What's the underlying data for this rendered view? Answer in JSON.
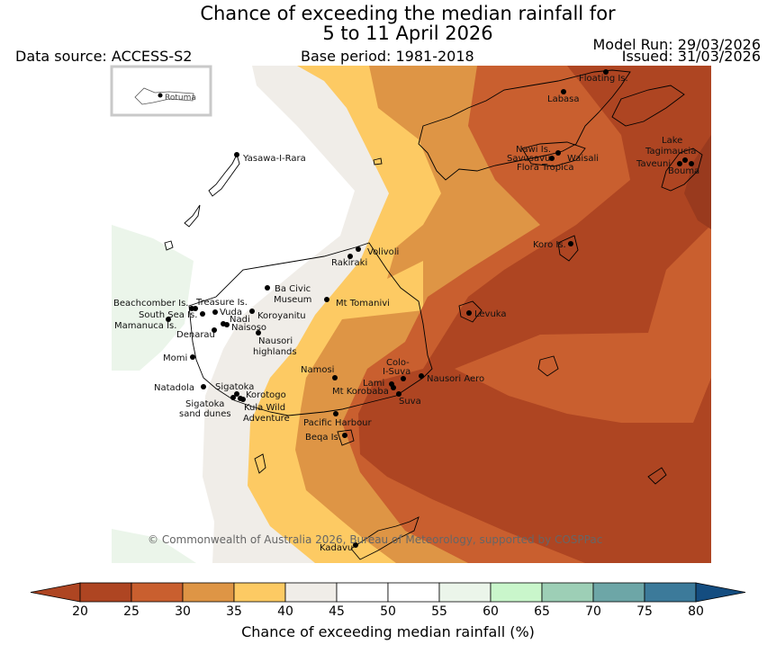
{
  "title_line1": "Chance of exceeding the median rainfall for",
  "title_line2": "5 to 11 April 2026",
  "data_source": "Data source: ACCESS-S2",
  "base_period": "Base period: 1981-2018",
  "model_run": "Model Run: 29/03/2026",
  "issued": "Issued: 31/03/2026",
  "inset_label": "Rotuma",
  "copyright": "© Commonwealth of Australia 2026, Bureau of Meteorology, supported by COSPPac",
  "places": [
    "Floating Is.",
    "Labasa",
    "Nawi Is.",
    "Savusavu",
    "Waisali",
    "Flora Tropica",
    "Lake",
    "Tagimaucia",
    "Taveuni",
    "Bouma",
    "Yasawa-I-Rara",
    "Volivoli",
    "Rakiraki",
    "Koro Is.",
    "Ba Civic",
    "Museum",
    "Mt Tomanivi",
    "Beachcomber Is.",
    "Treasure Is.",
    "South Sea Is.",
    "Vuda",
    "Koroyanitu",
    "Nadi",
    "Mamanuca Is.",
    "Naisoso",
    "Denarau",
    "Nausori",
    "highlands",
    "Levuka",
    "Momi",
    "Namosi",
    "Colo-",
    "I-Suva",
    "Nausori Aero",
    "Natadola",
    "Sigatoka",
    "Lami",
    "Mt Korobaba",
    "Korotogo",
    "Suva",
    "Kula Wild",
    "Adventure",
    "sand dunes",
    "Pacific Harbour",
    "Beqa Is.",
    "Kadavu"
  ],
  "colorbar": {
    "ticks": [
      "20",
      "25",
      "30",
      "35",
      "40",
      "45",
      "50",
      "55",
      "60",
      "65",
      "70",
      "75",
      "80"
    ],
    "colors": [
      "#ae4522",
      "#c95f2f",
      "#de9545",
      "#fdca63",
      "#f0ede8",
      "#ffffff",
      "#ffffff",
      "#ebf5ea",
      "#c9f6cb",
      "#9dcfb6",
      "#6da6a7",
      "#3c7a9a",
      "#144d80"
    ],
    "label": "Chance of exceeding median rainfall (%)"
  }
}
